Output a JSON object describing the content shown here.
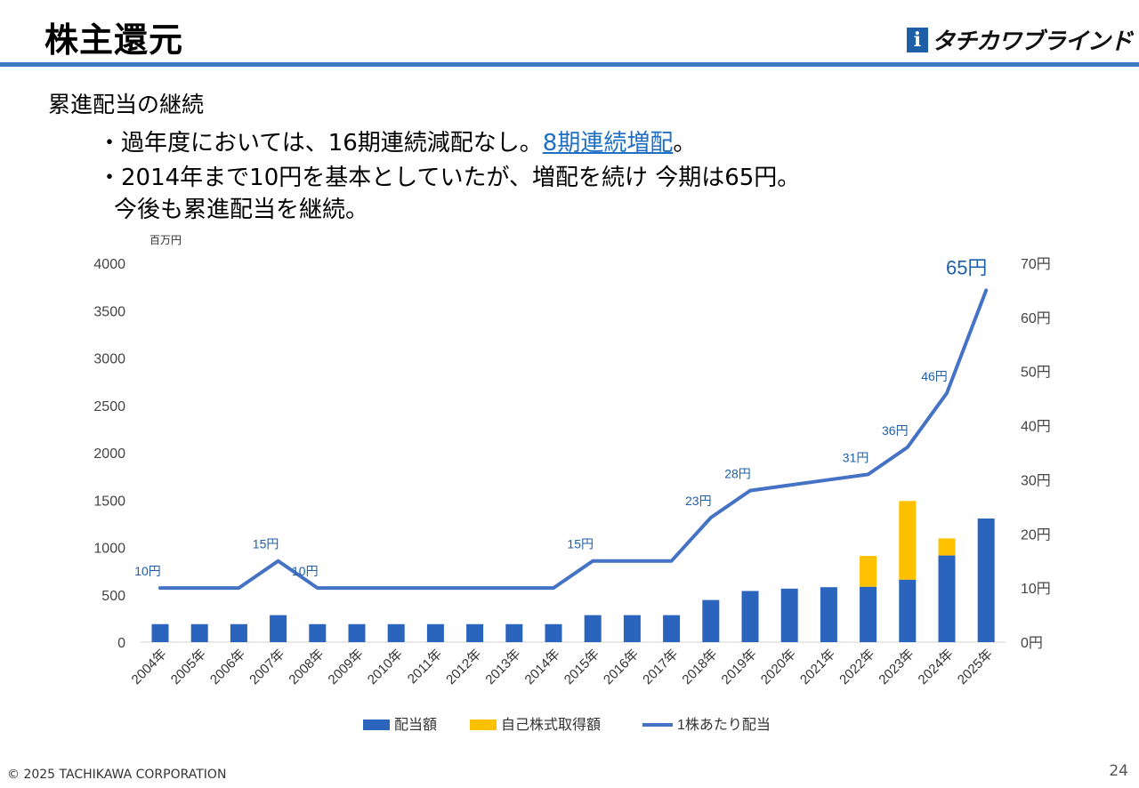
{
  "slide": {
    "title": "株主還元",
    "logo_mark": "i",
    "logo_text": "タチカワブラインド",
    "subheading": "累進配当の継続",
    "bullet1_prefix": "・過年度においては、16期連続減配なし。",
    "bullet1_highlight": "8期連続増配",
    "bullet1_suffix": "。",
    "bullet2": "・2014年まで10円を基本としていたが、増配を続け 今期は65円。",
    "bullet3": "今後も累進配当を継続。",
    "copyright": "© 2025 TACHIKAWA CORPORATION",
    "page_number": "24"
  },
  "colors": {
    "accent_rule": "#3d78c2",
    "dividend_bar": "#2a64bd",
    "buyback_bar": "#ffc000",
    "line": "#4472c4",
    "label": "#1f5fa8"
  },
  "chart_data": {
    "type": "bar",
    "stacked": true,
    "y_unit_label": "百万円",
    "categories": [
      "2004年",
      "2005年",
      "2006年",
      "2007年",
      "2008年",
      "2009年",
      "2010年",
      "2011年",
      "2012年",
      "2013年",
      "2014年",
      "2015年",
      "2016年",
      "2017年",
      "2018年",
      "2019年",
      "2020年",
      "2021年",
      "2022年",
      "2023年",
      "2024年",
      "2025年"
    ],
    "ylim_left": [
      0,
      4000
    ],
    "yticks_left": [
      "0",
      "500",
      "1000",
      "1500",
      "2000",
      "2500",
      "3000",
      "3500",
      "4000"
    ],
    "ylim_right": [
      0,
      70
    ],
    "yticks_right": [
      "0円",
      "10円",
      "20円",
      "30円",
      "40円",
      "50円",
      "60円",
      "70円"
    ],
    "series": [
      {
        "name": "配当額",
        "type": "bar",
        "axis": "left",
        "values": [
          190,
          190,
          190,
          285,
          190,
          190,
          190,
          190,
          190,
          190,
          190,
          285,
          285,
          285,
          445,
          540,
          565,
          580,
          585,
          660,
          915,
          1305
        ]
      },
      {
        "name": "自己株式取得額",
        "type": "bar",
        "axis": "left",
        "values": [
          0,
          0,
          0,
          0,
          0,
          0,
          0,
          0,
          0,
          0,
          0,
          0,
          0,
          0,
          0,
          0,
          0,
          0,
          325,
          830,
          180,
          0
        ]
      },
      {
        "name": "1株あたり配当",
        "type": "line",
        "axis": "right",
        "values": [
          10,
          10,
          10,
          15,
          10,
          10,
          10,
          10,
          10,
          10,
          10,
          15,
          15,
          15,
          23,
          28,
          29,
          30,
          31,
          36,
          46,
          65
        ]
      }
    ],
    "data_labels": [
      {
        "index": 0,
        "text": "10円"
      },
      {
        "index": 3,
        "text": "15円"
      },
      {
        "index": 4,
        "text": "10円"
      },
      {
        "index": 11,
        "text": "15円"
      },
      {
        "index": 14,
        "text": "23円"
      },
      {
        "index": 15,
        "text": "28円"
      },
      {
        "index": 18,
        "text": "31円"
      },
      {
        "index": 19,
        "text": "36円"
      },
      {
        "index": 20,
        "text": "46円"
      },
      {
        "index": 21,
        "text": "65円",
        "large": true
      }
    ],
    "legend_position": "bottom",
    "grid": false
  }
}
